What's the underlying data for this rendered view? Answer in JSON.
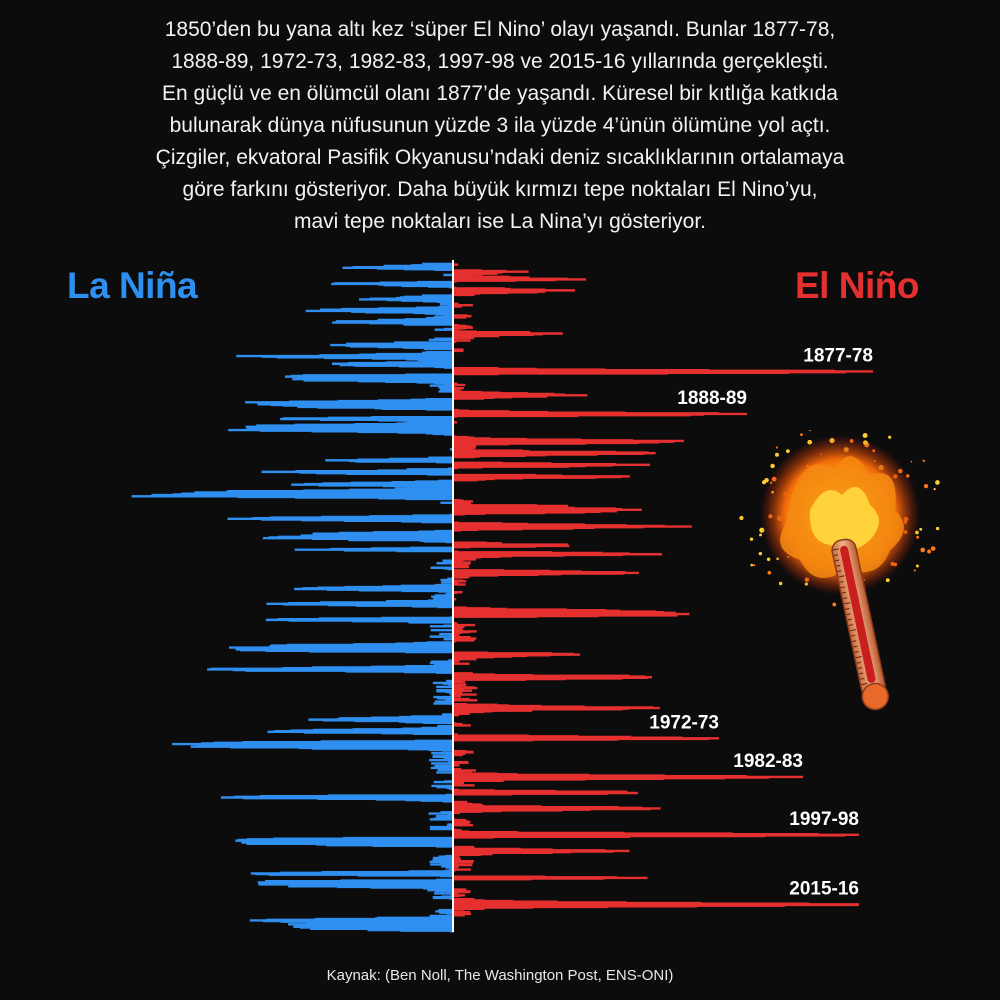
{
  "intro_lines": [
    "1850’den bu yana altı kez ‘süper El Nino’ olayı yaşandı. Bunlar 1877-78,",
    "1888-89, 1972-73, 1982-83, 1997-98 ve 2015-16 yıllarında gerçekleşti.",
    "En güçlü ve en ölümcül olanı 1877’de yaşandı. Küresel bir kıtlığa katkıda",
    "bulunarak dünya nüfusunun yüzde 3 ila yüzde 4’ünün ölümüne yol açtı.",
    "Çizgiler, ekvatoral Pasifik Okyanusu’ndaki deniz sıcaklıklarının ortalamaya",
    "göre farkını gösteriyor. Daha büyük kırmızı tepe noktaları El Nino’yu,",
    "mavi tepe noktaları ise La Nina’yı gösteriyor."
  ],
  "left_label": "La Niña",
  "right_label": "El Niño",
  "source": "Kaynak: (Ben Noll, The Washington Post, ENS-ONI)",
  "colors": {
    "la_nina": "#2f8ff0",
    "el_nino": "#e63030",
    "axis": "#ffffff",
    "background": "#0c0c0c"
  },
  "decor_icon": "burning-thermometer-icon",
  "chart_data": {
    "type": "bar",
    "orientation": "horizontal-diverging",
    "x_range": [
      -2.3,
      3.0
    ],
    "y_range": [
      1850,
      2023
    ],
    "super_el_nino_events": [
      {
        "label": "1877-78",
        "year": 1877.9,
        "value": 3.0
      },
      {
        "label": "1888-89",
        "year": 1888.9,
        "value": 2.1
      },
      {
        "label": "1972-73",
        "year": 1972.9,
        "value": 1.9
      },
      {
        "label": "1982-83",
        "year": 1982.9,
        "value": 2.5
      },
      {
        "label": "1997-98",
        "year": 1997.9,
        "value": 2.9
      },
      {
        "label": "2015-16",
        "year": 2015.9,
        "value": 2.9
      }
    ],
    "anomaly_extremes": [
      {
        "year": 1851,
        "value": -0.8
      },
      {
        "year": 1852,
        "value": 0.5
      },
      {
        "year": 1854,
        "value": 0.9
      },
      {
        "year": 1855,
        "value": -0.9
      },
      {
        "year": 1857,
        "value": 0.8
      },
      {
        "year": 1859,
        "value": -0.6
      },
      {
        "year": 1862,
        "value": -1.1
      },
      {
        "year": 1865,
        "value": -0.8
      },
      {
        "year": 1868,
        "value": 0.7
      },
      {
        "year": 1871,
        "value": -0.9
      },
      {
        "year": 1874,
        "value": -1.5
      },
      {
        "year": 1876,
        "value": -0.9
      },
      {
        "year": 1879,
        "value": -1.3
      },
      {
        "year": 1880,
        "value": -1.0
      },
      {
        "year": 1884,
        "value": 0.8
      },
      {
        "year": 1886,
        "value": -1.4
      },
      {
        "year": 1887,
        "value": -1.0
      },
      {
        "year": 1890,
        "value": -1.2
      },
      {
        "year": 1892,
        "value": -1.3
      },
      {
        "year": 1893,
        "value": -1.6
      },
      {
        "year": 1896,
        "value": 1.6
      },
      {
        "year": 1899,
        "value": 1.4
      },
      {
        "year": 1901,
        "value": -0.9
      },
      {
        "year": 1902,
        "value": 1.4
      },
      {
        "year": 1904,
        "value": -1.4
      },
      {
        "year": 1905,
        "value": 1.3
      },
      {
        "year": 1907,
        "value": -1.1
      },
      {
        "year": 1909,
        "value": -1.6
      },
      {
        "year": 1910,
        "value": -2.3
      },
      {
        "year": 1913,
        "value": 0.9
      },
      {
        "year": 1914,
        "value": 1.3
      },
      {
        "year": 1916,
        "value": -1.6
      },
      {
        "year": 1918,
        "value": 1.6
      },
      {
        "year": 1920,
        "value": -0.9
      },
      {
        "year": 1921,
        "value": -1.2
      },
      {
        "year": 1923,
        "value": 0.9
      },
      {
        "year": 1924,
        "value": -1.3
      },
      {
        "year": 1925,
        "value": 1.5
      },
      {
        "year": 1930,
        "value": 1.2
      },
      {
        "year": 1934,
        "value": -1.1
      },
      {
        "year": 1938,
        "value": -1.2
      },
      {
        "year": 1940,
        "value": 1.4
      },
      {
        "year": 1941,
        "value": 1.6
      },
      {
        "year": 1942,
        "value": -1.5
      },
      {
        "year": 1949,
        "value": -1.4
      },
      {
        "year": 1950,
        "value": -1.6
      },
      {
        "year": 1951,
        "value": 1.0
      },
      {
        "year": 1955,
        "value": -1.8
      },
      {
        "year": 1957,
        "value": 1.5
      },
      {
        "year": 1965,
        "value": 1.5
      },
      {
        "year": 1968,
        "value": -0.9
      },
      {
        "year": 1971,
        "value": -1.4
      },
      {
        "year": 1974,
        "value": -1.9
      },
      {
        "year": 1975,
        "value": -1.7
      },
      {
        "year": 1987,
        "value": 1.5
      },
      {
        "year": 1988,
        "value": -1.9
      },
      {
        "year": 1991,
        "value": 1.4
      },
      {
        "year": 1999,
        "value": -1.6
      },
      {
        "year": 2000,
        "value": -1.5
      },
      {
        "year": 2002,
        "value": 1.2
      },
      {
        "year": 2008,
        "value": -1.6
      },
      {
        "year": 2009,
        "value": 1.6
      },
      {
        "year": 2010,
        "value": -1.6
      },
      {
        "year": 2011,
        "value": -1.1
      },
      {
        "year": 2020,
        "value": -1.3
      },
      {
        "year": 2021,
        "value": -1.0
      },
      {
        "year": 2022,
        "value": -1.0
      }
    ]
  }
}
